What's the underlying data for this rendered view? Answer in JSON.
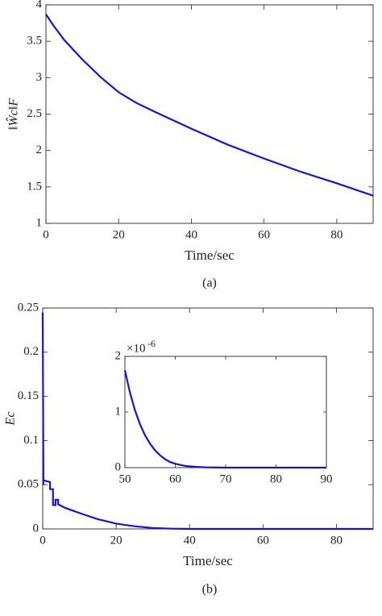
{
  "chart_data": [
    {
      "type": "line",
      "caption": "(a)",
      "xlabel": "Time/sec",
      "ylabel": "‖Ŵc‖F",
      "xlim": [
        0,
        90
      ],
      "ylim": [
        1,
        4
      ],
      "xticks": [
        0,
        20,
        40,
        60,
        80
      ],
      "yticks": [
        1,
        1.5,
        2,
        2.5,
        3,
        3.5,
        4
      ],
      "x": [
        0,
        2,
        5,
        10,
        15,
        20,
        25,
        30,
        40,
        50,
        60,
        70,
        80,
        90
      ],
      "series": [
        {
          "color": "#1414e0",
          "values": [
            3.87,
            3.72,
            3.52,
            3.25,
            3.01,
            2.8,
            2.65,
            2.53,
            2.3,
            2.08,
            1.89,
            1.71,
            1.55,
            1.38
          ]
        }
      ]
    },
    {
      "type": "line",
      "caption": "(b)",
      "xlabel": "Time/sec",
      "ylabel": "Ec",
      "xlim": [
        0,
        90
      ],
      "ylim": [
        0,
        0.25
      ],
      "xticks": [
        0,
        20,
        40,
        60,
        80
      ],
      "yticks": [
        0,
        0.05,
        0.1,
        0.15,
        0.2,
        0.25
      ],
      "x": [
        0,
        0.2,
        0.2,
        2,
        2,
        2.8,
        2.8,
        3.5,
        3.5,
        4.2,
        4.2,
        6,
        10,
        15,
        20,
        25,
        30,
        35,
        40,
        60,
        90
      ],
      "series": [
        {
          "color": "#1414e0",
          "values": [
            0.245,
            0.05,
            0.055,
            0.053,
            0.045,
            0.045,
            0.027,
            0.027,
            0.033,
            0.033,
            0.028,
            0.024,
            0.018,
            0.011,
            0.006,
            0.003,
            0.001,
            0.0003,
            0,
            0,
            0
          ]
        }
      ]
    },
    {
      "type": "line",
      "y_multiplier_base": "×10",
      "y_multiplier_exponent": "-6",
      "xlim": [
        50,
        90
      ],
      "ylim": [
        0,
        2
      ],
      "xticks": [
        50,
        60,
        70,
        80,
        90
      ],
      "yticks": [
        0,
        1,
        2
      ],
      "x": [
        50,
        51,
        52,
        53,
        54,
        55,
        56,
        57,
        58,
        59,
        60,
        62,
        64,
        66,
        70,
        80,
        90
      ],
      "series": [
        {
          "color": "#1414e0",
          "values": [
            1.75,
            1.35,
            1.03,
            0.78,
            0.58,
            0.43,
            0.31,
            0.22,
            0.15,
            0.1,
            0.07,
            0.03,
            0.015,
            0.005,
            0,
            0,
            0
          ]
        }
      ]
    }
  ]
}
